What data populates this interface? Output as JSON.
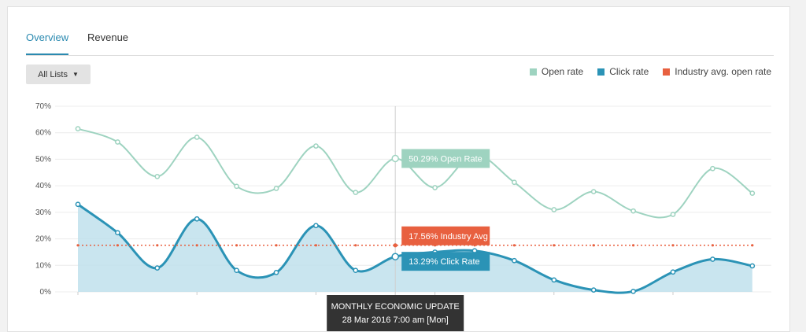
{
  "tabs": [
    {
      "label": "Overview",
      "active": true
    },
    {
      "label": "Revenue",
      "active": false
    }
  ],
  "filter": {
    "label": "All Lists",
    "icon": "chevron-down-icon"
  },
  "colors": {
    "open": "#9ed3c0",
    "click": "#2b93b6",
    "click_fill": "#bfe1ec",
    "industry": "#e8603f",
    "tooltip": "#333333"
  },
  "chart_data": {
    "type": "area",
    "ylim": [
      0,
      70
    ],
    "yticks": [
      "0%",
      "10%",
      "20%",
      "30%",
      "40%",
      "50%",
      "60%",
      "70%"
    ],
    "legend_placement": "top-right",
    "grid": true,
    "series": [
      {
        "name": "Open rate",
        "values": [
          61.5,
          56.5,
          43.5,
          58.3,
          39.8,
          39,
          55,
          37.5,
          50.29,
          39.3,
          51.8,
          41.3,
          31,
          37.8,
          30.5,
          29.2,
          46.5,
          37.2
        ]
      },
      {
        "name": "Click rate",
        "values": [
          33,
          22.3,
          9,
          27.5,
          8.1,
          7.3,
          25,
          8.1,
          13.29,
          15,
          15.5,
          11.8,
          4.5,
          0.7,
          0.2,
          7.5,
          12.3,
          9.8
        ]
      },
      {
        "name": "Industry avg. open rate",
        "values": [
          17.56,
          17.56,
          17.56,
          17.56,
          17.56,
          17.56,
          17.56,
          17.56,
          17.56,
          17.56,
          17.56,
          17.56,
          17.56,
          17.56,
          17.56,
          17.56,
          17.56,
          17.56
        ]
      }
    ],
    "highlight_index": 8,
    "annotations": {
      "open": "50.29% Open Rate",
      "industry": "17.56% Industry Avg",
      "click": "13.29% Click Rate",
      "tooltip_title": "MONTHLY ECONOMIC UPDATE",
      "tooltip_date": "28 Mar 2016 7:00 am [Mon]"
    }
  }
}
